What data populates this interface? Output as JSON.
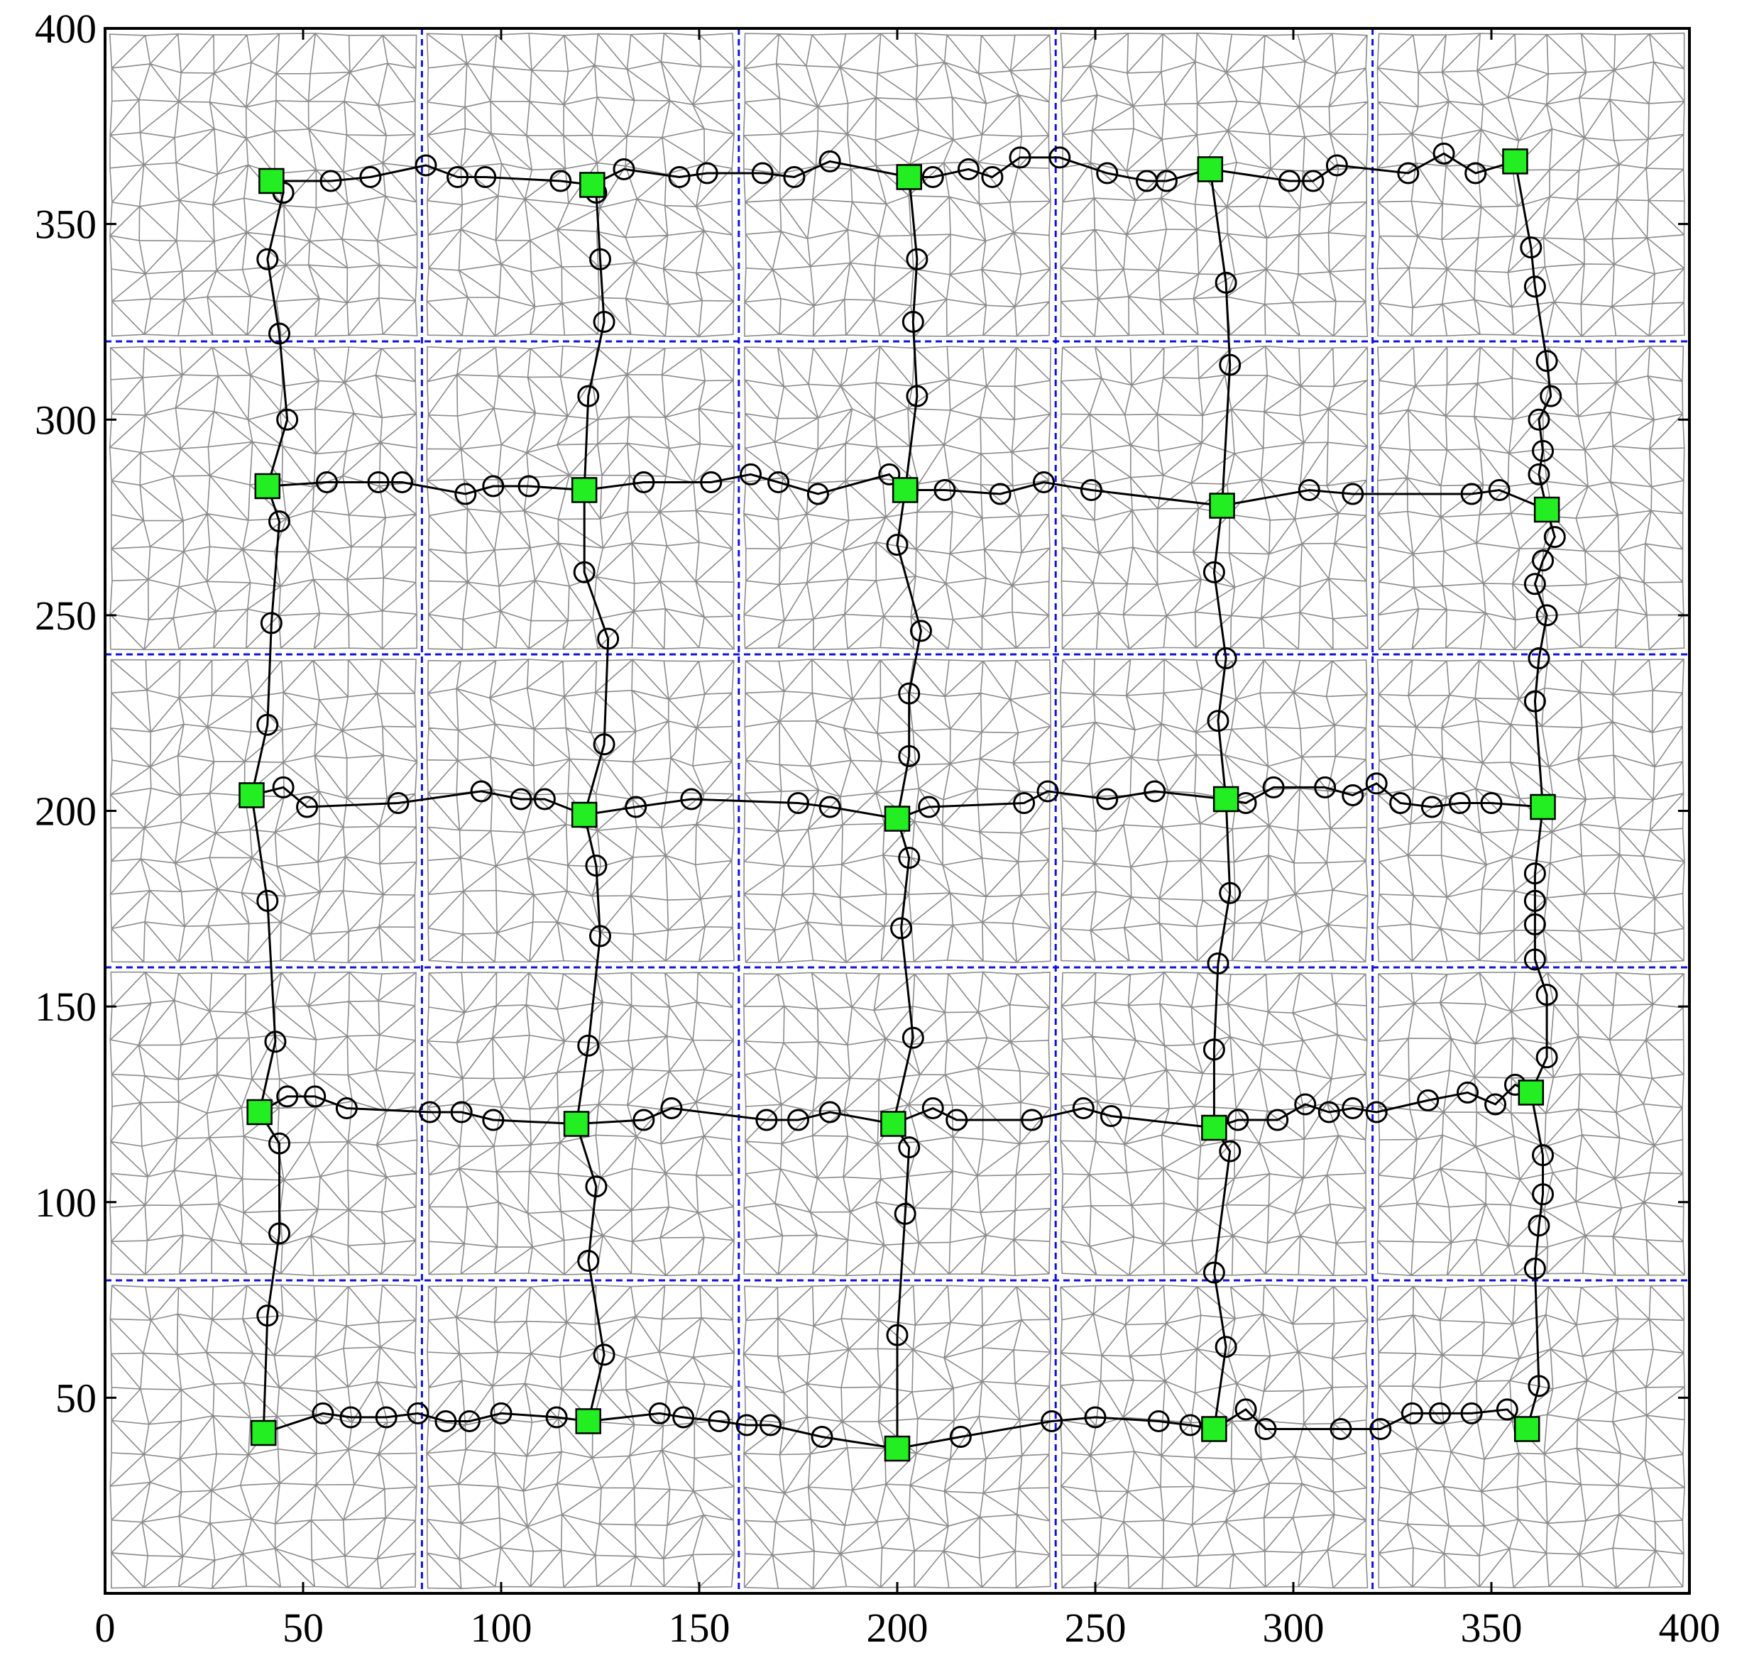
{
  "chart_data": {
    "type": "scatter",
    "title": "",
    "xlabel": "",
    "ylabel": "",
    "xlim": [
      0,
      400
    ],
    "ylim": [
      0,
      400
    ],
    "xticks": [
      "0",
      "50",
      "100",
      "150",
      "200",
      "250",
      "300",
      "350",
      "400"
    ],
    "yticks": [
      "50",
      "100",
      "150",
      "200",
      "250",
      "300",
      "350",
      "400"
    ],
    "partition_lines": {
      "x": [
        80,
        160,
        240,
        320
      ],
      "y": [
        80,
        160,
        240,
        320
      ],
      "color": "#1111dd",
      "style": "dashed"
    },
    "colors": {
      "mesh": "#8c8c8c",
      "path": "#000000",
      "relay_marker": "#000000",
      "anchor_fill": "#22ee22",
      "anchor_edge": "#000000",
      "frame": "#000000"
    },
    "mesh": {
      "description_free": true,
      "cells_x": 5,
      "cells_y": 5,
      "cell_size": 80
    },
    "anchor_nodes": [
      [
        42,
        361
      ],
      [
        123,
        360
      ],
      [
        203,
        362
      ],
      [
        279,
        364
      ],
      [
        356,
        366
      ],
      [
        41,
        283
      ],
      [
        121,
        282
      ],
      [
        202,
        282
      ],
      [
        282,
        278
      ],
      [
        364,
        277
      ],
      [
        37,
        204
      ],
      [
        121,
        199
      ],
      [
        200,
        198
      ],
      [
        283,
        203
      ],
      [
        363,
        201
      ],
      [
        39,
        123
      ],
      [
        119,
        120
      ],
      [
        199,
        120
      ],
      [
        280,
        119
      ],
      [
        360,
        128
      ],
      [
        40,
        41
      ],
      [
        122,
        44
      ],
      [
        200,
        37
      ],
      [
        280,
        42
      ],
      [
        359,
        42
      ]
    ],
    "horizontal_paths": [
      {
        "points": [
          [
            42,
            361
          ],
          [
            57,
            361
          ],
          [
            67,
            362
          ],
          [
            81,
            365
          ],
          [
            89,
            362
          ],
          [
            96,
            362
          ],
          [
            115,
            361
          ],
          [
            123,
            360
          ],
          [
            131,
            364
          ],
          [
            145,
            362
          ],
          [
            152,
            363
          ],
          [
            166,
            363
          ],
          [
            174,
            362
          ],
          [
            183,
            366
          ],
          [
            203,
            362
          ],
          [
            209,
            362
          ],
          [
            218,
            364
          ],
          [
            224,
            362
          ],
          [
            231,
            367
          ],
          [
            241,
            367
          ],
          [
            253,
            363
          ],
          [
            263,
            361
          ],
          [
            268,
            361
          ],
          [
            279,
            364
          ],
          [
            299,
            361
          ],
          [
            305,
            361
          ],
          [
            311,
            365
          ],
          [
            329,
            363
          ],
          [
            338,
            368
          ],
          [
            346,
            363
          ],
          [
            356,
            366
          ]
        ]
      },
      {
        "points": [
          [
            41,
            283
          ],
          [
            56,
            284
          ],
          [
            69,
            284
          ],
          [
            75,
            284
          ],
          [
            91,
            281
          ],
          [
            98,
            283
          ],
          [
            107,
            283
          ],
          [
            121,
            282
          ],
          [
            136,
            284
          ],
          [
            153,
            284
          ],
          [
            163,
            286
          ],
          [
            170,
            284
          ],
          [
            180,
            281
          ],
          [
            198,
            286
          ],
          [
            202,
            282
          ],
          [
            212,
            282
          ],
          [
            226,
            281
          ],
          [
            237,
            284
          ],
          [
            249,
            282
          ],
          [
            282,
            278
          ],
          [
            304,
            282
          ],
          [
            315,
            281
          ],
          [
            345,
            281
          ],
          [
            352,
            282
          ],
          [
            364,
            277
          ]
        ]
      },
      {
        "points": [
          [
            37,
            204
          ],
          [
            45,
            206
          ],
          [
            51,
            201
          ],
          [
            74,
            202
          ],
          [
            95,
            205
          ],
          [
            105,
            203
          ],
          [
            111,
            203
          ],
          [
            121,
            199
          ],
          [
            134,
            201
          ],
          [
            148,
            203
          ],
          [
            175,
            202
          ],
          [
            183,
            201
          ],
          [
            200,
            198
          ],
          [
            208,
            201
          ],
          [
            232,
            202
          ],
          [
            238,
            205
          ],
          [
            253,
            203
          ],
          [
            265,
            205
          ],
          [
            283,
            203
          ],
          [
            288,
            202
          ],
          [
            295,
            206
          ],
          [
            308,
            206
          ],
          [
            315,
            204
          ],
          [
            321,
            207
          ],
          [
            327,
            202
          ],
          [
            335,
            201
          ],
          [
            342,
            202
          ],
          [
            350,
            202
          ],
          [
            363,
            201
          ]
        ]
      },
      {
        "points": [
          [
            39,
            123
          ],
          [
            46,
            127
          ],
          [
            53,
            127
          ],
          [
            61,
            124
          ],
          [
            82,
            123
          ],
          [
            90,
            123
          ],
          [
            98,
            121
          ],
          [
            119,
            120
          ],
          [
            136,
            121
          ],
          [
            143,
            124
          ],
          [
            167,
            121
          ],
          [
            175,
            121
          ],
          [
            183,
            123
          ],
          [
            199,
            120
          ],
          [
            209,
            124
          ],
          [
            215,
            121
          ],
          [
            234,
            121
          ],
          [
            247,
            124
          ],
          [
            254,
            122
          ],
          [
            280,
            119
          ],
          [
            286,
            121
          ],
          [
            296,
            121
          ],
          [
            303,
            125
          ],
          [
            309,
            123
          ],
          [
            315,
            124
          ],
          [
            321,
            123
          ],
          [
            334,
            126
          ],
          [
            344,
            128
          ],
          [
            351,
            125
          ],
          [
            356,
            130
          ],
          [
            360,
            128
          ]
        ]
      },
      {
        "points": [
          [
            40,
            41
          ],
          [
            55,
            46
          ],
          [
            62,
            45
          ],
          [
            71,
            45
          ],
          [
            79,
            46
          ],
          [
            86,
            44
          ],
          [
            92,
            44
          ],
          [
            100,
            46
          ],
          [
            114,
            45
          ],
          [
            122,
            44
          ],
          [
            140,
            46
          ],
          [
            146,
            45
          ],
          [
            155,
            44
          ],
          [
            162,
            43
          ],
          [
            168,
            43
          ],
          [
            181,
            40
          ],
          [
            200,
            37
          ],
          [
            216,
            40
          ],
          [
            239,
            44
          ],
          [
            250,
            45
          ],
          [
            266,
            44
          ],
          [
            274,
            43
          ],
          [
            280,
            42
          ],
          [
            288,
            47
          ],
          [
            293,
            42
          ],
          [
            312,
            42
          ],
          [
            322,
            42
          ],
          [
            330,
            46
          ],
          [
            337,
            46
          ],
          [
            345,
            46
          ],
          [
            354,
            47
          ],
          [
            359,
            42
          ]
        ]
      }
    ],
    "vertical_paths": [
      {
        "points": [
          [
            42,
            361
          ],
          [
            45,
            358
          ],
          [
            41,
            341
          ],
          [
            44,
            322
          ],
          [
            46,
            300
          ],
          [
            41,
            283
          ],
          [
            44,
            274
          ],
          [
            42,
            248
          ],
          [
            41,
            222
          ],
          [
            37,
            204
          ],
          [
            41,
            177
          ],
          [
            43,
            141
          ],
          [
            39,
            123
          ],
          [
            44,
            115
          ],
          [
            44,
            92
          ],
          [
            41,
            71
          ],
          [
            40,
            41
          ]
        ]
      },
      {
        "points": [
          [
            123,
            360
          ],
          [
            124,
            358
          ],
          [
            125,
            341
          ],
          [
            126,
            325
          ],
          [
            122,
            306
          ],
          [
            121,
            282
          ],
          [
            121,
            261
          ],
          [
            127,
            244
          ],
          [
            126,
            217
          ],
          [
            121,
            199
          ],
          [
            124,
            186
          ],
          [
            125,
            168
          ],
          [
            122,
            140
          ],
          [
            119,
            120
          ],
          [
            124,
            104
          ],
          [
            122,
            85
          ],
          [
            126,
            61
          ],
          [
            122,
            44
          ]
        ]
      },
      {
        "points": [
          [
            203,
            362
          ],
          [
            205,
            341
          ],
          [
            204,
            325
          ],
          [
            205,
            306
          ],
          [
            202,
            282
          ],
          [
            200,
            268
          ],
          [
            206,
            246
          ],
          [
            203,
            230
          ],
          [
            203,
            214
          ],
          [
            200,
            198
          ],
          [
            203,
            188
          ],
          [
            201,
            170
          ],
          [
            204,
            142
          ],
          [
            199,
            120
          ],
          [
            203,
            114
          ],
          [
            202,
            97
          ],
          [
            200,
            66
          ],
          [
            200,
            37
          ]
        ]
      },
      {
        "points": [
          [
            279,
            364
          ],
          [
            283,
            335
          ],
          [
            284,
            314
          ],
          [
            282,
            278
          ],
          [
            280,
            261
          ],
          [
            283,
            239
          ],
          [
            281,
            223
          ],
          [
            283,
            203
          ],
          [
            284,
            179
          ],
          [
            281,
            161
          ],
          [
            280,
            139
          ],
          [
            280,
            119
          ],
          [
            284,
            113
          ],
          [
            280,
            82
          ],
          [
            283,
            63
          ],
          [
            280,
            42
          ]
        ]
      },
      {
        "points": [
          [
            356,
            366
          ],
          [
            360,
            344
          ],
          [
            361,
            334
          ],
          [
            364,
            315
          ],
          [
            365,
            306
          ],
          [
            362,
            300
          ],
          [
            363,
            292
          ],
          [
            362,
            286
          ],
          [
            364,
            277
          ],
          [
            366,
            270
          ],
          [
            363,
            264
          ],
          [
            361,
            258
          ],
          [
            364,
            250
          ],
          [
            362,
            239
          ],
          [
            361,
            228
          ],
          [
            363,
            201
          ],
          [
            361,
            184
          ],
          [
            361,
            177
          ],
          [
            361,
            171
          ],
          [
            361,
            162
          ],
          [
            364,
            153
          ],
          [
            364,
            137
          ],
          [
            360,
            128
          ],
          [
            363,
            112
          ],
          [
            363,
            102
          ],
          [
            362,
            94
          ],
          [
            361,
            83
          ],
          [
            362,
            53
          ],
          [
            359,
            42
          ]
        ]
      }
    ]
  }
}
